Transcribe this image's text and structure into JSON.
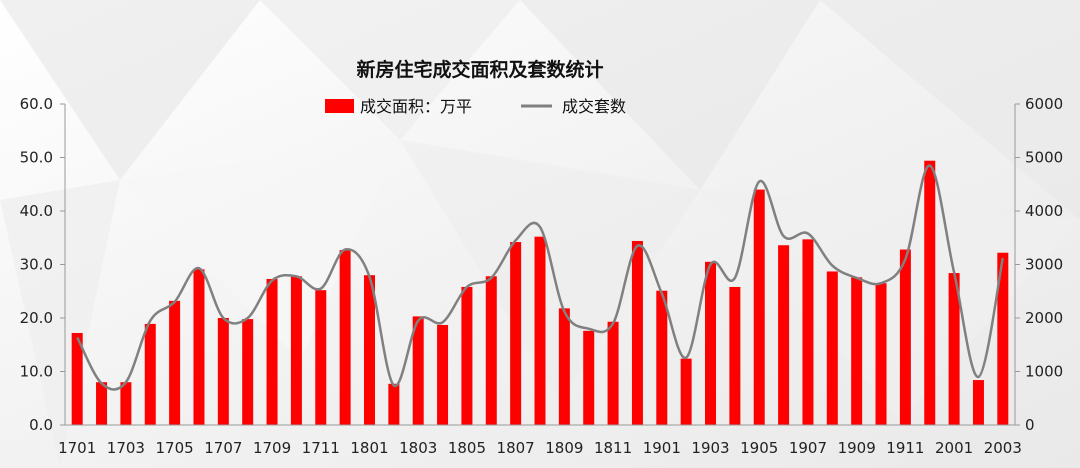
{
  "chart_data": {
    "type": "bar+line",
    "title": "新房住宅成交面积及套数统计",
    "categories": [
      "1701",
      "1702",
      "1703",
      "1704",
      "1705",
      "1706",
      "1707",
      "1708",
      "1709",
      "1710",
      "1711",
      "1712",
      "1801",
      "1802",
      "1803",
      "1804",
      "1805",
      "1806",
      "1807",
      "1808",
      "1809",
      "1810",
      "1811",
      "1812",
      "1901",
      "1902",
      "1903",
      "1904",
      "1905",
      "1906",
      "1907",
      "1908",
      "1909",
      "1910",
      "1911",
      "1912",
      "2001",
      "2002",
      "2003"
    ],
    "x_tick_labels": [
      "1701",
      "1703",
      "1705",
      "1707",
      "1709",
      "1711",
      "1801",
      "1803",
      "1805",
      "1807",
      "1809",
      "1811",
      "1901",
      "1903",
      "1905",
      "1907",
      "1909",
      "1911",
      "2001",
      "2003"
    ],
    "series": [
      {
        "name": "成交面积：万平",
        "type": "bar",
        "axis": "left",
        "color": "#ff0000",
        "values": [
          17.2,
          8.0,
          8.0,
          18.9,
          23.2,
          29.1,
          20.0,
          19.8,
          27.3,
          27.8,
          25.2,
          32.7,
          28.0,
          7.7,
          20.3,
          18.7,
          25.8,
          27.8,
          34.2,
          35.2,
          21.8,
          17.6,
          19.3,
          34.4,
          25.1,
          12.4,
          30.5,
          25.8,
          44.0,
          33.6,
          34.7,
          28.7,
          27.6,
          26.5,
          32.8,
          49.4,
          28.4,
          8.4,
          32.2
        ]
      },
      {
        "name": "成交套数",
        "type": "line",
        "axis": "right",
        "color": "#808080",
        "values": [
          1640,
          780,
          800,
          1950,
          2300,
          2930,
          2000,
          2000,
          2700,
          2780,
          2550,
          3280,
          2770,
          740,
          1950,
          1920,
          2580,
          2750,
          3450,
          3700,
          2120,
          1800,
          1900,
          3350,
          2460,
          1260,
          3000,
          2750,
          4550,
          3530,
          3580,
          2980,
          2750,
          2650,
          3100,
          4850,
          2850,
          900,
          3120
        ]
      }
    ],
    "y_left": {
      "min": 0,
      "max": 60,
      "ticks": [
        "0.0",
        "10.0",
        "20.0",
        "30.0",
        "40.0",
        "50.0",
        "60.0"
      ]
    },
    "y_right": {
      "min": 0,
      "max": 6000,
      "ticks": [
        "0",
        "1000",
        "2000",
        "3000",
        "4000",
        "5000",
        "6000"
      ]
    },
    "legend_placement": "top-center",
    "grid": false
  }
}
